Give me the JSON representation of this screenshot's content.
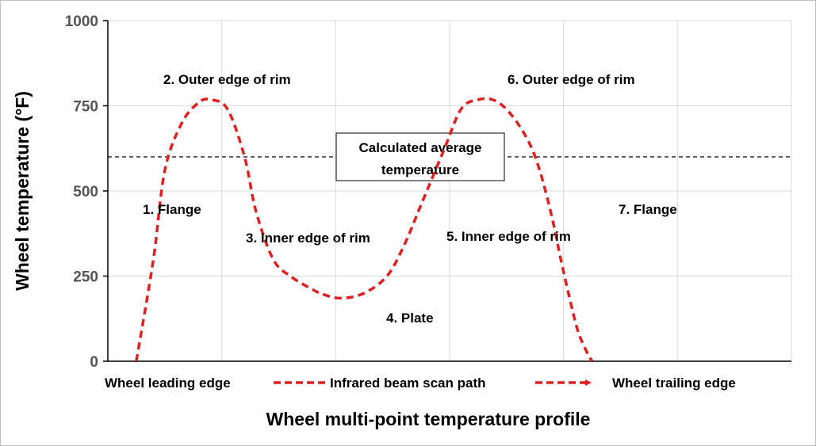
{
  "chart_data": {
    "type": "line",
    "title": "",
    "xlabel": "Wheel multi-point temperature profile",
    "ylabel": "Wheel temperature (°F)",
    "ylim": [
      0,
      1000
    ],
    "yticks": [
      "0",
      "250",
      "500",
      "750",
      "1000"
    ],
    "grid": true,
    "series": [
      {
        "color": "#e02020",
        "style": "dashed",
        "x": [
          0.5,
          0.8,
          1.0,
          1.3,
          1.6,
          1.8,
          2.1,
          2.4,
          2.6,
          2.9,
          3.2,
          3.6,
          3.8,
          4.1,
          4.5,
          4.9,
          5.2,
          5.5,
          5.9,
          6.2,
          6.5,
          6.8,
          7.1,
          7.4,
          7.6,
          7.8,
          7.95,
          8.1,
          8.25,
          8.4,
          8.5
        ],
        "values": [
          0,
          300,
          560,
          700,
          760,
          768,
          740,
          600,
          440,
          300,
          250,
          210,
          195,
          185,
          200,
          250,
          340,
          460,
          620,
          740,
          768,
          765,
          720,
          640,
          550,
          420,
          300,
          190,
          90,
          30,
          0
        ]
      }
    ],
    "reference_line": {
      "value": 600,
      "label": "Calculated average temperature",
      "label_lines": [
        "Calculated average",
        "temperature"
      ],
      "style": "dashed",
      "color": "#000000"
    },
    "annotations": [
      "1. Flange",
      "2. Outer edge of rim",
      "3. Inner edge of rim",
      "4. Plate",
      "5. Inner edge of rim",
      "6. Outer edge of rim",
      "7. Flange"
    ],
    "legend": {
      "left": "Wheel leading edge",
      "middle": "Infrared beam scan path",
      "right": "Wheel trailing edge"
    }
  }
}
